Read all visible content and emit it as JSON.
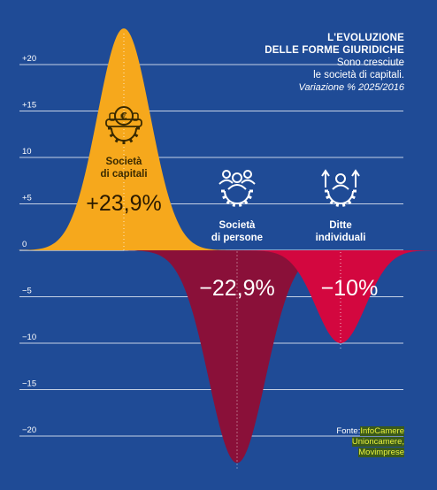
{
  "header": {
    "title_line1": "L'EVOLUZIONE",
    "title_line2": "DELLE FORME GIURIDICHE",
    "subtitle_line1": "Sono cresciute",
    "subtitle_line2": "le società di capitali.",
    "variation_label": "Variazione % 2025/2016"
  },
  "source": {
    "label": "Fonte:",
    "line1": "InfoCamere",
    "line2": "Unioncamere,",
    "line3": "Movimprese"
  },
  "colors": {
    "background": "#1f4b96",
    "capitali": "#f6a81c",
    "persone": "#8a1039",
    "individuali": "#d3073f",
    "gridline": "#ffffff",
    "text": "#ffffff"
  },
  "chart_data": {
    "type": "area",
    "title": "L'EVOLUZIONE DELLE FORME GIURIDICHE",
    "ylabel": "Variazione % 2025/2016",
    "ylim": [
      -22.9,
      23.9
    ],
    "yticks": [
      20,
      15,
      10,
      5,
      0,
      -5,
      -10,
      -15,
      -20
    ],
    "ytick_labels": [
      "+20",
      "+15",
      "10",
      "+5",
      "0",
      "−5",
      "−10",
      "−15",
      "−20"
    ],
    "grid": true,
    "categories": [
      "Società di capitali",
      "Società di persone",
      "Ditte individuali"
    ],
    "category_labels": [
      [
        "Società",
        "di capitali"
      ],
      [
        "Società",
        "di persone"
      ],
      [
        "Ditte",
        "individuali"
      ]
    ],
    "values": [
      23.9,
      -22.9,
      -10
    ],
    "value_labels": [
      "+23,9%",
      "−22,9%",
      "−10%"
    ],
    "icons": [
      "coins-gear-icon",
      "people-gear-icon",
      "arrows-gear-icon"
    ]
  }
}
